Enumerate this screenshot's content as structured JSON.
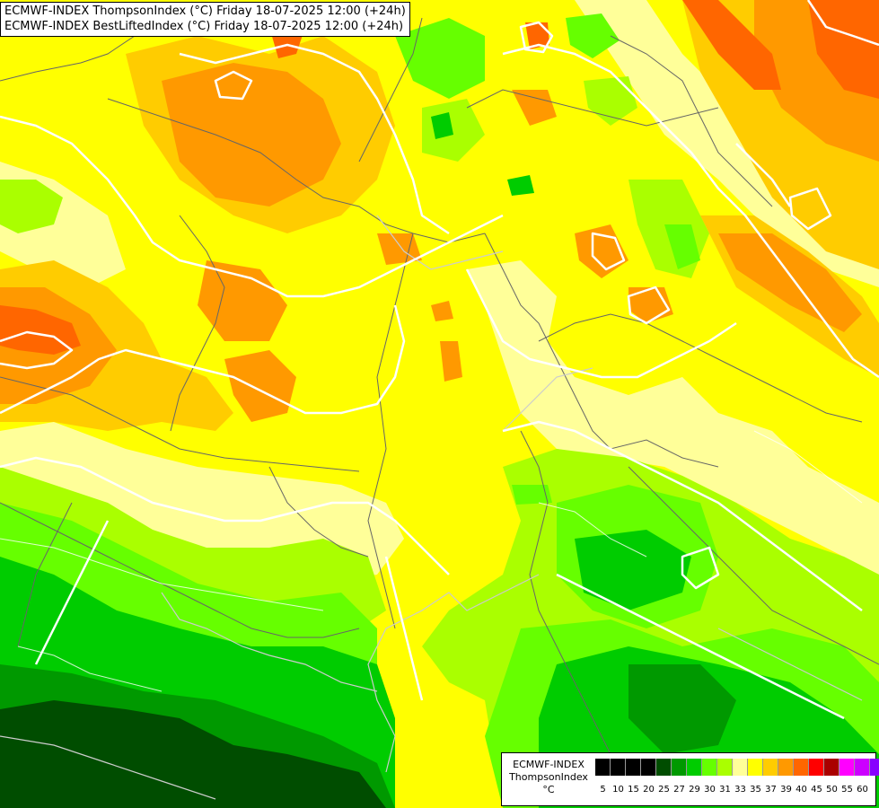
{
  "titles": {
    "line1": "ECMWF-INDEX ThompsonIndex (°C) Friday 18-07-2025 12:00 (+24h)",
    "line2": "ECMWF-INDEX BestLiftedIndex (°C) Friday 18-07-2025 12:00 (+24h)"
  },
  "legend": {
    "name": "ECMWF-INDEX",
    "parameter": "ThompsonIndex",
    "unit": "°C",
    "colors": [
      "#000000",
      "#000000",
      "#000000",
      "#000000",
      "#004d00",
      "#009900",
      "#00cc00",
      "#66ff00",
      "#aaff00",
      "#ffff99",
      "#ffff00",
      "#ffcc00",
      "#ff9900",
      "#ff6600",
      "#ff0000",
      "#aa0000",
      "#ff00ff",
      "#cc00ff",
      "#8800ff",
      "#5500ff",
      "#0000ff"
    ],
    "ticks": [
      "5",
      "10",
      "15",
      "20",
      "25",
      "27",
      "29",
      "30",
      "31",
      "33",
      "35",
      "37",
      "39",
      "40",
      "45",
      "50",
      "55",
      "60"
    ]
  },
  "map_colors": {
    "dark_green": "#004d00",
    "mid_green": "#009900",
    "green": "#00cc00",
    "light_green": "#66ff00",
    "yellow_green": "#aaff00",
    "pale_yellow": "#ffff99",
    "yellow": "#ffff00",
    "light_orange": "#ffcc00",
    "orange": "#ff9900",
    "red_orange": "#ff6600",
    "contour": "#ffffff",
    "border": "#666666"
  }
}
